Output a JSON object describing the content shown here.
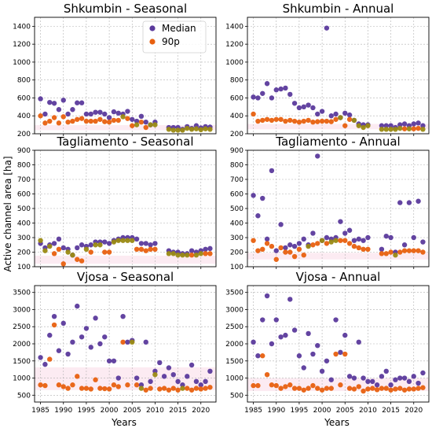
{
  "xlabel": "Years",
  "ylabel": "Active channel area [ha]",
  "colors": {
    "median": "#5b3a9c",
    "p90": "#e8600f",
    "overlap": "#9a8a13"
  },
  "legend": [
    {
      "key": "median",
      "label": "Median"
    },
    {
      "key": "p90",
      "label": "90p"
    }
  ],
  "chart_data": [
    {
      "type": "scatter",
      "title": "Shkumbin - Seasonal",
      "xlabel": "",
      "ylabel": "Active channel area [ha]",
      "xlim": [
        1983.7,
        2023.3
      ],
      "ylim": [
        200,
        1500
      ],
      "xticks": [
        1985,
        1990,
        1995,
        2000,
        2005,
        2010,
        2015,
        2020
      ],
      "yticks": [
        200,
        400,
        600,
        800,
        1000,
        1200,
        1400
      ],
      "xtick_labels": [
        "",
        "",
        "",
        "",
        "",
        "",
        "",
        ""
      ],
      "legend": "top-center",
      "x": [
        1985,
        1986,
        1987,
        1988,
        1989,
        1990,
        1991,
        1992,
        1993,
        1994,
        1995,
        1996,
        1997,
        1998,
        1999,
        2000,
        2001,
        2002,
        2003,
        2004,
        2005,
        2006,
        2007,
        2008,
        2009,
        2010,
        2013,
        2014,
        2015,
        2016,
        2017,
        2018,
        2019,
        2020,
        2021,
        2022
      ],
      "series": [
        {
          "name": "Median",
          "key": "median",
          "values": [
            590,
            420,
            550,
            540,
            470,
            575,
            420,
            470,
            545,
            545,
            420,
            420,
            440,
            440,
            420,
            380,
            445,
            430,
            420,
            450,
            360,
            340,
            395,
            330,
            300,
            330,
            270,
            270,
            270,
            250,
            280,
            260,
            290,
            265,
            280,
            275
          ]
        },
        {
          "name": "90p",
          "key": "p90",
          "values": [
            400,
            320,
            340,
            380,
            320,
            390,
            330,
            340,
            360,
            370,
            340,
            340,
            340,
            360,
            335,
            330,
            350,
            350,
            390,
            370,
            290,
            300,
            330,
            270,
            300,
            300,
            250,
            240,
            240,
            240,
            260,
            250,
            255,
            245,
            255,
            250
          ]
        }
      ]
    },
    {
      "type": "scatter",
      "title": "Shkumbin - Annual",
      "xlabel": "",
      "ylabel": "",
      "xlim": [
        1983.7,
        2023.3
      ],
      "ylim": [
        200,
        1500
      ],
      "xticks": [
        1985,
        1990,
        1995,
        2000,
        2005,
        2010,
        2015,
        2020
      ],
      "yticks": [
        200,
        400,
        600,
        800,
        1000,
        1200,
        1400
      ],
      "xtick_labels": [
        "",
        "",
        "",
        "",
        "",
        "",
        "",
        ""
      ],
      "x": [
        1985,
        1986,
        1987,
        1988,
        1989,
        1990,
        1991,
        1992,
        1993,
        1994,
        1995,
        1996,
        1997,
        1998,
        1999,
        2000,
        2001,
        2002,
        2003,
        2004,
        2005,
        2006,
        2007,
        2008,
        2009,
        2010,
        2013,
        2014,
        2015,
        2016,
        2017,
        2018,
        2019,
        2020,
        2021,
        2022
      ],
      "series": [
        {
          "name": "Median",
          "key": "median",
          "values": [
            610,
            600,
            650,
            760,
            600,
            690,
            700,
            710,
            640,
            540,
            490,
            500,
            520,
            490,
            420,
            450,
            1380,
            400,
            420,
            380,
            430,
            410,
            350,
            310,
            300,
            300,
            290,
            290,
            290,
            270,
            300,
            310,
            290,
            310,
            320,
            290
          ]
        },
        {
          "name": "90p",
          "key": "p90",
          "values": [
            420,
            340,
            350,
            360,
            350,
            360,
            360,
            340,
            350,
            340,
            330,
            340,
            350,
            330,
            335,
            340,
            340,
            335,
            360,
            380,
            290,
            360,
            350,
            290,
            270,
            290,
            250,
            250,
            250,
            250,
            260,
            255,
            255,
            255,
            260,
            250
          ]
        }
      ]
    },
    {
      "type": "scatter",
      "title": "Tagliamento - Seasonal",
      "xlabel": "",
      "ylabel": "Active channel area [ha]",
      "xlim": [
        1983.7,
        2023.3
      ],
      "ylim": [
        100,
        900
      ],
      "xticks": [
        1985,
        1990,
        1995,
        2000,
        2005,
        2010,
        2015,
        2020
      ],
      "yticks": [
        100,
        200,
        300,
        400,
        500,
        600,
        700,
        800,
        900
      ],
      "xtick_labels": [
        "",
        "",
        "",
        "",
        "",
        "",
        "",
        ""
      ],
      "x": [
        1985,
        1986,
        1987,
        1988,
        1989,
        1990,
        1991,
        1992,
        1993,
        1994,
        1995,
        1996,
        1997,
        1998,
        1999,
        2000,
        2001,
        2002,
        2003,
        2004,
        2005,
        2006,
        2007,
        2008,
        2009,
        2010,
        2013,
        2014,
        2015,
        2016,
        2017,
        2018,
        2019,
        2020,
        2021,
        2022
      ],
      "series": [
        {
          "name": "Median",
          "key": "median",
          "values": [
            260,
            230,
            250,
            260,
            290,
            230,
            220,
            180,
            230,
            250,
            240,
            250,
            270,
            270,
            270,
            260,
            280,
            290,
            300,
            300,
            300,
            290,
            260,
            260,
            250,
            260,
            210,
            200,
            200,
            190,
            190,
            210,
            200,
            210,
            220,
            225
          ]
        },
        {
          "name": "90p",
          "key": "p90",
          "values": [
            280,
            210,
            240,
            190,
            220,
            120,
            200,
            180,
            150,
            140,
            220,
            200,
            250,
            250,
            200,
            200,
            270,
            280,
            280,
            280,
            280,
            220,
            220,
            210,
            220,
            220,
            190,
            190,
            180,
            180,
            180,
            180,
            180,
            190,
            190,
            190
          ]
        }
      ]
    },
    {
      "type": "scatter",
      "title": "Tagliamento - Annual",
      "xlabel": "",
      "ylabel": "",
      "xlim": [
        1983.7,
        2023.3
      ],
      "ylim": [
        100,
        900
      ],
      "xticks": [
        1985,
        1990,
        1995,
        2000,
        2005,
        2010,
        2015,
        2020
      ],
      "yticks": [
        100,
        200,
        300,
        400,
        500,
        600,
        700,
        800,
        900
      ],
      "xtick_labels": [
        "",
        "",
        "",
        "",
        "",
        "",
        "",
        ""
      ],
      "x": [
        1985,
        1986,
        1987,
        1988,
        1989,
        1990,
        1991,
        1992,
        1993,
        1994,
        1995,
        1996,
        1997,
        1998,
        1999,
        2000,
        2001,
        2002,
        2003,
        2004,
        2005,
        2006,
        2007,
        2008,
        2009,
        2010,
        2013,
        2014,
        2015,
        2016,
        2017,
        2018,
        2019,
        2020,
        2021,
        2022
      ],
      "series": [
        {
          "name": "Median",
          "key": "median",
          "values": [
            590,
            450,
            570,
            290,
            760,
            210,
            390,
            230,
            250,
            240,
            260,
            290,
            250,
            330,
            860,
            280,
            300,
            290,
            300,
            410,
            330,
            350,
            280,
            290,
            280,
            300,
            220,
            310,
            300,
            200,
            540,
            250,
            540,
            300,
            550,
            270
          ]
        },
        {
          "name": "90p",
          "key": "p90",
          "values": [
            280,
            210,
            220,
            260,
            240,
            150,
            230,
            200,
            200,
            170,
            220,
            180,
            240,
            250,
            260,
            280,
            260,
            270,
            280,
            280,
            280,
            260,
            240,
            230,
            220,
            220,
            190,
            190,
            200,
            180,
            200,
            210,
            210,
            210,
            210,
            200
          ]
        }
      ]
    },
    {
      "type": "scatter",
      "title": "Vjosa - Seasonal",
      "xlabel": "Years",
      "ylabel": "Active channel area [ha]",
      "xlim": [
        1983.7,
        2023.3
      ],
      "ylim": [
        300,
        3700
      ],
      "xticks": [
        1985,
        1990,
        1995,
        2000,
        2005,
        2010,
        2015,
        2020
      ],
      "yticks": [
        500,
        1000,
        1500,
        2000,
        2500,
        3000,
        3500
      ],
      "xtick_labels": [
        "1985",
        "1990",
        "1995",
        "2000",
        "2005",
        "2010",
        "2015",
        "2020"
      ],
      "x": [
        1985,
        1986,
        1987,
        1988,
        1989,
        1990,
        1991,
        1992,
        1993,
        1994,
        1995,
        1996,
        1997,
        1998,
        1999,
        2000,
        2001,
        2002,
        2003,
        2004,
        2005,
        2006,
        2007,
        2008,
        2009,
        2010,
        2011,
        2012,
        2013,
        2014,
        2015,
        2016,
        2017,
        2018,
        2019,
        2020,
        2021,
        2022
      ],
      "series": [
        {
          "name": "Median",
          "key": "median",
          "values": [
            1600,
            1400,
            2250,
            2800,
            1800,
            2600,
            1700,
            2050,
            3100,
            2200,
            2450,
            1900,
            2750,
            2000,
            2200,
            1500,
            1500,
            1000,
            2800,
            2050,
            2100,
            1000,
            800,
            2050,
            900,
            1200,
            1450,
            1050,
            1300,
            1100,
            900,
            800,
            1050,
            1380,
            900,
            800,
            900,
            1200
          ]
        },
        {
          "name": "90p",
          "key": "p90",
          "values": [
            800,
            780,
            1550,
            2550,
            800,
            750,
            700,
            800,
            1050,
            700,
            700,
            680,
            950,
            700,
            690,
            680,
            800,
            750,
            2050,
            800,
            2050,
            800,
            700,
            650,
            700,
            1100,
            680,
            700,
            650,
            700,
            650,
            700,
            700,
            650,
            700,
            680,
            700,
            730
          ]
        }
      ]
    },
    {
      "type": "scatter",
      "title": "Vjosa - Annual",
      "xlabel": "Years",
      "ylabel": "",
      "xlim": [
        1983.7,
        2023.3
      ],
      "ylim": [
        300,
        3700
      ],
      "xticks": [
        1985,
        1990,
        1995,
        2000,
        2005,
        2010,
        2015,
        2020
      ],
      "yticks": [
        500,
        1000,
        1500,
        2000,
        2500,
        3000,
        3500
      ],
      "xtick_labels": [
        "1985",
        "1990",
        "1995",
        "2000",
        "2005",
        "2010",
        "2015",
        "2020"
      ],
      "x": [
        1985,
        1986,
        1987,
        1988,
        1989,
        1990,
        1991,
        1992,
        1993,
        1994,
        1995,
        1996,
        1997,
        1998,
        1999,
        2000,
        2001,
        2002,
        2003,
        2004,
        2005,
        2006,
        2007,
        2008,
        2009,
        2010,
        2011,
        2012,
        2013,
        2014,
        2015,
        2016,
        2017,
        2018,
        2019,
        2020,
        2021,
        2022
      ],
      "series": [
        {
          "name": "Median",
          "key": "median",
          "values": [
            2050,
            1650,
            2700,
            3400,
            2000,
            2700,
            2200,
            2250,
            3300,
            2400,
            1650,
            1300,
            2300,
            1700,
            1950,
            1200,
            1500,
            950,
            2700,
            1750,
            2250,
            1050,
            1000,
            2050,
            1000,
            900,
            900,
            800,
            1050,
            1200,
            800,
            950,
            1000,
            1000,
            900,
            1050,
            850,
            1150
          ]
        },
        {
          "name": "90p",
          "key": "p90",
          "values": [
            780,
            780,
            1650,
            1100,
            800,
            780,
            700,
            750,
            800,
            700,
            700,
            650,
            700,
            780,
            700,
            650,
            700,
            700,
            1700,
            800,
            1700,
            700,
            680,
            750,
            620,
            680,
            700,
            660,
            700,
            700,
            650,
            680,
            700,
            650,
            680,
            680,
            700,
            720
          ]
        }
      ]
    }
  ]
}
